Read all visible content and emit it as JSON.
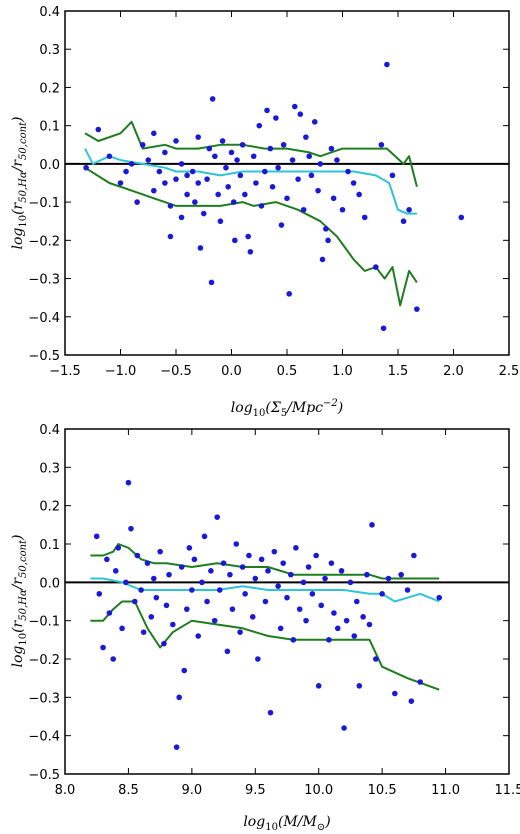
{
  "chart_data": [
    {
      "type": "scatter",
      "xlabel": "log10(Σ5/Mpc^-2)",
      "ylabel": "log10(r50,Hα/r50,cont)",
      "xlim": [
        -1.5,
        2.5
      ],
      "ylim": [
        -0.5,
        0.4
      ],
      "xticks": [
        "−1.5",
        "−1.0",
        "−0.5",
        "0.0",
        "0.5",
        "1.0",
        "1.5",
        "2.0",
        "2.5"
      ],
      "yticks": [
        "0.4",
        "0.3",
        "0.2",
        "0.1",
        "0.0",
        "−0.1",
        "−0.2",
        "−0.3",
        "−0.4",
        "−0.5"
      ],
      "colors": {
        "points": "#1a1ad6",
        "band": "#1e7d1e",
        "median": "#2ec4d6",
        "zero": "#000000"
      },
      "points": [
        [
          -1.31,
          -0.01
        ],
        [
          -1.2,
          0.09
        ],
        [
          -1.1,
          0.02
        ],
        [
          -1.0,
          -0.05
        ],
        [
          -0.95,
          -0.02
        ],
        [
          -0.9,
          0.0
        ],
        [
          -0.85,
          -0.1
        ],
        [
          -0.8,
          0.05
        ],
        [
          -0.75,
          0.01
        ],
        [
          -0.7,
          -0.07
        ],
        [
          -0.7,
          0.08
        ],
        [
          -0.65,
          -0.02
        ],
        [
          -0.6,
          -0.05
        ],
        [
          -0.6,
          0.03
        ],
        [
          -0.55,
          -0.11
        ],
        [
          -0.55,
          -0.19
        ],
        [
          -0.5,
          -0.04
        ],
        [
          -0.5,
          0.06
        ],
        [
          -0.45,
          -0.14
        ],
        [
          -0.45,
          0.0
        ],
        [
          -0.4,
          -0.08
        ],
        [
          -0.4,
          -0.03
        ],
        [
          -0.35,
          -0.02
        ],
        [
          -0.33,
          -0.1
        ],
        [
          -0.3,
          0.07
        ],
        [
          -0.3,
          -0.05
        ],
        [
          -0.28,
          -0.22
        ],
        [
          -0.25,
          -0.13
        ],
        [
          -0.22,
          -0.04
        ],
        [
          -0.2,
          0.04
        ],
        [
          -0.18,
          -0.31
        ],
        [
          -0.17,
          0.17
        ],
        [
          -0.15,
          0.02
        ],
        [
          -0.12,
          -0.08
        ],
        [
          -0.1,
          -0.15
        ],
        [
          -0.08,
          0.06
        ],
        [
          -0.05,
          -0.01
        ],
        [
          -0.03,
          -0.06
        ],
        [
          0.0,
          0.03
        ],
        [
          0.02,
          -0.1
        ],
        [
          0.03,
          -0.2
        ],
        [
          0.05,
          0.01
        ],
        [
          0.08,
          -0.03
        ],
        [
          0.1,
          0.05
        ],
        [
          0.12,
          -0.08
        ],
        [
          0.15,
          -0.19
        ],
        [
          0.17,
          -0.23
        ],
        [
          0.2,
          0.02
        ],
        [
          0.22,
          -0.05
        ],
        [
          0.25,
          0.1
        ],
        [
          0.27,
          -0.11
        ],
        [
          0.3,
          -0.02
        ],
        [
          0.32,
          0.14
        ],
        [
          0.35,
          0.04
        ],
        [
          0.37,
          -0.06
        ],
        [
          0.4,
          0.12
        ],
        [
          0.42,
          -0.01
        ],
        [
          0.45,
          -0.16
        ],
        [
          0.47,
          0.05
        ],
        [
          0.5,
          -0.09
        ],
        [
          0.52,
          -0.34
        ],
        [
          0.55,
          0.01
        ],
        [
          0.57,
          0.15
        ],
        [
          0.6,
          -0.04
        ],
        [
          0.62,
          0.13
        ],
        [
          0.65,
          -0.12
        ],
        [
          0.67,
          0.07
        ],
        [
          0.7,
          0.02
        ],
        [
          0.72,
          -0.03
        ],
        [
          0.75,
          0.11
        ],
        [
          0.78,
          -0.07
        ],
        [
          0.8,
          0.0
        ],
        [
          0.82,
          -0.25
        ],
        [
          0.85,
          -0.17
        ],
        [
          0.87,
          -0.2
        ],
        [
          0.9,
          0.04
        ],
        [
          0.92,
          -0.09
        ],
        [
          0.95,
          0.01
        ],
        [
          1.0,
          -0.12
        ],
        [
          1.05,
          -0.02
        ],
        [
          1.1,
          -0.05
        ],
        [
          1.15,
          -0.08
        ],
        [
          1.2,
          -0.14
        ],
        [
          1.3,
          -0.27
        ],
        [
          1.35,
          0.05
        ],
        [
          1.37,
          -0.43
        ],
        [
          1.4,
          0.26
        ],
        [
          1.45,
          -0.03
        ],
        [
          1.55,
          -0.15
        ],
        [
          1.6,
          -0.12
        ],
        [
          1.67,
          -0.38
        ],
        [
          2.07,
          -0.14
        ]
      ],
      "upper": [
        [
          -1.32,
          0.08
        ],
        [
          -1.2,
          0.06
        ],
        [
          -1.0,
          0.08
        ],
        [
          -0.9,
          0.11
        ],
        [
          -0.8,
          0.04
        ],
        [
          -0.6,
          0.05
        ],
        [
          -0.5,
          0.04
        ],
        [
          -0.3,
          0.04
        ],
        [
          -0.1,
          0.05
        ],
        [
          0.1,
          0.05
        ],
        [
          0.3,
          0.04
        ],
        [
          0.5,
          0.04
        ],
        [
          0.7,
          0.03
        ],
        [
          0.8,
          0.02
        ],
        [
          1.0,
          0.04
        ],
        [
          1.2,
          0.04
        ],
        [
          1.4,
          0.04
        ],
        [
          1.55,
          0.0
        ],
        [
          1.6,
          0.02
        ],
        [
          1.67,
          -0.06
        ]
      ],
      "median": [
        [
          -1.32,
          0.04
        ],
        [
          -1.25,
          0.0
        ],
        [
          -1.1,
          0.02
        ],
        [
          -1.0,
          0.01
        ],
        [
          -0.8,
          0.0
        ],
        [
          -0.6,
          -0.01
        ],
        [
          -0.5,
          -0.02
        ],
        [
          -0.3,
          -0.02
        ],
        [
          -0.1,
          -0.03
        ],
        [
          0.1,
          -0.02
        ],
        [
          0.3,
          -0.02
        ],
        [
          0.5,
          -0.02
        ],
        [
          0.7,
          -0.02
        ],
        [
          0.9,
          -0.02
        ],
        [
          1.1,
          -0.02
        ],
        [
          1.3,
          -0.03
        ],
        [
          1.42,
          -0.05
        ],
        [
          1.5,
          -0.12
        ],
        [
          1.58,
          -0.13
        ],
        [
          1.67,
          -0.13
        ]
      ],
      "lower": [
        [
          -1.32,
          -0.01
        ],
        [
          -1.1,
          -0.05
        ],
        [
          -0.9,
          -0.07
        ],
        [
          -0.7,
          -0.09
        ],
        [
          -0.6,
          -0.1
        ],
        [
          -0.5,
          -0.11
        ],
        [
          -0.3,
          -0.11
        ],
        [
          -0.1,
          -0.11
        ],
        [
          0.1,
          -0.1
        ],
        [
          0.2,
          -0.11
        ],
        [
          0.4,
          -0.1
        ],
        [
          0.6,
          -0.12
        ],
        [
          0.8,
          -0.15
        ],
        [
          0.95,
          -0.19
        ],
        [
          1.1,
          -0.25
        ],
        [
          1.2,
          -0.28
        ],
        [
          1.3,
          -0.27
        ],
        [
          1.38,
          -0.3
        ],
        [
          1.45,
          -0.27
        ],
        [
          1.52,
          -0.37
        ],
        [
          1.6,
          -0.28
        ],
        [
          1.67,
          -0.31
        ]
      ]
    },
    {
      "type": "scatter",
      "xlabel": "log10(M/M⊙)",
      "ylabel": "log10(r50,Hα/r50,cont)",
      "xlim": [
        8.0,
        11.5
      ],
      "ylim": [
        -0.5,
        0.4
      ],
      "xticks": [
        "8.0",
        "8.5",
        "9.0",
        "9.5",
        "10.0",
        "10.5",
        "11.0",
        "11.5"
      ],
      "yticks": [
        "0.4",
        "0.3",
        "0.2",
        "0.1",
        "0.0",
        "−0.1",
        "−0.2",
        "−0.3",
        "−0.4",
        "−0.5"
      ],
      "colors": {
        "points": "#1a1ad6",
        "band": "#1e7d1e",
        "median": "#2ec4d6",
        "zero": "#000000"
      },
      "points": [
        [
          8.25,
          0.12
        ],
        [
          8.27,
          -0.03
        ],
        [
          8.3,
          -0.17
        ],
        [
          8.33,
          0.06
        ],
        [
          8.35,
          -0.08
        ],
        [
          8.38,
          -0.2
        ],
        [
          8.4,
          0.03
        ],
        [
          8.42,
          0.09
        ],
        [
          8.45,
          -0.12
        ],
        [
          8.48,
          0.0
        ],
        [
          8.5,
          0.26
        ],
        [
          8.52,
          0.14
        ],
        [
          8.55,
          -0.05
        ],
        [
          8.57,
          0.07
        ],
        [
          8.6,
          -0.02
        ],
        [
          8.62,
          -0.13
        ],
        [
          8.65,
          0.05
        ],
        [
          8.68,
          -0.09
        ],
        [
          8.7,
          0.01
        ],
        [
          8.72,
          -0.04
        ],
        [
          8.75,
          0.08
        ],
        [
          8.78,
          -0.16
        ],
        [
          8.8,
          -0.06
        ],
        [
          8.82,
          0.02
        ],
        [
          8.85,
          -0.11
        ],
        [
          8.88,
          -0.43
        ],
        [
          8.9,
          -0.3
        ],
        [
          8.92,
          0.04
        ],
        [
          8.94,
          -0.23
        ],
        [
          8.96,
          -0.07
        ],
        [
          8.98,
          0.09
        ],
        [
          9.0,
          -0.02
        ],
        [
          9.02,
          0.06
        ],
        [
          9.05,
          -0.14
        ],
        [
          9.08,
          0.0
        ],
        [
          9.1,
          0.12
        ],
        [
          9.12,
          -0.05
        ],
        [
          9.15,
          0.03
        ],
        [
          9.18,
          -0.1
        ],
        [
          9.2,
          0.17
        ],
        [
          9.22,
          -0.02
        ],
        [
          9.25,
          0.05
        ],
        [
          9.28,
          -0.18
        ],
        [
          9.3,
          0.02
        ],
        [
          9.32,
          -0.07
        ],
        [
          9.35,
          0.1
        ],
        [
          9.38,
          -0.13
        ],
        [
          9.4,
          0.04
        ],
        [
          9.42,
          -0.03
        ],
        [
          9.45,
          0.07
        ],
        [
          9.48,
          -0.09
        ],
        [
          9.5,
          0.01
        ],
        [
          9.52,
          -0.2
        ],
        [
          9.55,
          0.06
        ],
        [
          9.58,
          -0.05
        ],
        [
          9.6,
          0.03
        ],
        [
          9.62,
          -0.34
        ],
        [
          9.65,
          0.08
        ],
        [
          9.68,
          -0.01
        ],
        [
          9.7,
          -0.12
        ],
        [
          9.72,
          0.05
        ],
        [
          9.75,
          -0.04
        ],
        [
          9.78,
          0.02
        ],
        [
          9.8,
          -0.15
        ],
        [
          9.82,
          0.09
        ],
        [
          9.85,
          -0.07
        ],
        [
          9.88,
          0.0
        ],
        [
          9.9,
          -0.1
        ],
        [
          9.92,
          0.04
        ],
        [
          9.95,
          -0.03
        ],
        [
          9.98,
          0.07
        ],
        [
          10.0,
          -0.27
        ],
        [
          10.02,
          -0.06
        ],
        [
          10.05,
          0.01
        ],
        [
          10.08,
          -0.15
        ],
        [
          10.1,
          0.05
        ],
        [
          10.12,
          -0.08
        ],
        [
          10.15,
          -0.12
        ],
        [
          10.18,
          0.03
        ],
        [
          10.2,
          -0.38
        ],
        [
          10.22,
          -0.1
        ],
        [
          10.25,
          0.0
        ],
        [
          10.28,
          -0.14
        ],
        [
          10.3,
          -0.05
        ],
        [
          10.32,
          -0.27
        ],
        [
          10.35,
          -0.09
        ],
        [
          10.38,
          0.02
        ],
        [
          10.4,
          -0.11
        ],
        [
          10.42,
          0.15
        ],
        [
          10.45,
          -0.2
        ],
        [
          10.5,
          -0.03
        ],
        [
          10.55,
          0.01
        ],
        [
          10.6,
          -0.29
        ],
        [
          10.65,
          0.02
        ],
        [
          10.7,
          -0.02
        ],
        [
          10.73,
          -0.31
        ],
        [
          10.75,
          0.07
        ],
        [
          10.8,
          -0.26
        ],
        [
          10.95,
          -0.04
        ]
      ],
      "upper": [
        [
          8.2,
          0.07
        ],
        [
          8.3,
          0.07
        ],
        [
          8.38,
          0.08
        ],
        [
          8.42,
          0.1
        ],
        [
          8.5,
          0.09
        ],
        [
          8.6,
          0.06
        ],
        [
          8.7,
          0.05
        ],
        [
          8.8,
          0.05
        ],
        [
          9.0,
          0.04
        ],
        [
          9.2,
          0.05
        ],
        [
          9.4,
          0.04
        ],
        [
          9.6,
          0.04
        ],
        [
          9.8,
          0.02
        ],
        [
          10.0,
          0.02
        ],
        [
          10.2,
          0.02
        ],
        [
          10.4,
          0.02
        ],
        [
          10.5,
          0.01
        ],
        [
          10.7,
          0.01
        ],
        [
          10.95,
          0.01
        ]
      ],
      "median": [
        [
          8.2,
          0.01
        ],
        [
          8.3,
          0.01
        ],
        [
          8.45,
          0.0
        ],
        [
          8.6,
          -0.02
        ],
        [
          8.8,
          -0.02
        ],
        [
          9.0,
          -0.02
        ],
        [
          9.2,
          -0.02
        ],
        [
          9.4,
          -0.01
        ],
        [
          9.6,
          -0.02
        ],
        [
          9.8,
          -0.02
        ],
        [
          10.0,
          -0.02
        ],
        [
          10.2,
          -0.02
        ],
        [
          10.4,
          -0.03
        ],
        [
          10.5,
          -0.03
        ],
        [
          10.6,
          -0.05
        ],
        [
          10.7,
          -0.04
        ],
        [
          10.8,
          -0.03
        ],
        [
          10.95,
          -0.05
        ]
      ],
      "lower": [
        [
          8.2,
          -0.1
        ],
        [
          8.3,
          -0.1
        ],
        [
          8.38,
          -0.07
        ],
        [
          8.45,
          -0.05
        ],
        [
          8.55,
          -0.05
        ],
        [
          8.65,
          -0.12
        ],
        [
          8.75,
          -0.17
        ],
        [
          8.85,
          -0.13
        ],
        [
          9.0,
          -0.1
        ],
        [
          9.2,
          -0.11
        ],
        [
          9.4,
          -0.12
        ],
        [
          9.6,
          -0.14
        ],
        [
          9.8,
          -0.15
        ],
        [
          10.0,
          -0.15
        ],
        [
          10.2,
          -0.15
        ],
        [
          10.4,
          -0.15
        ],
        [
          10.5,
          -0.22
        ],
        [
          10.7,
          -0.25
        ],
        [
          10.95,
          -0.28
        ]
      ]
    }
  ]
}
